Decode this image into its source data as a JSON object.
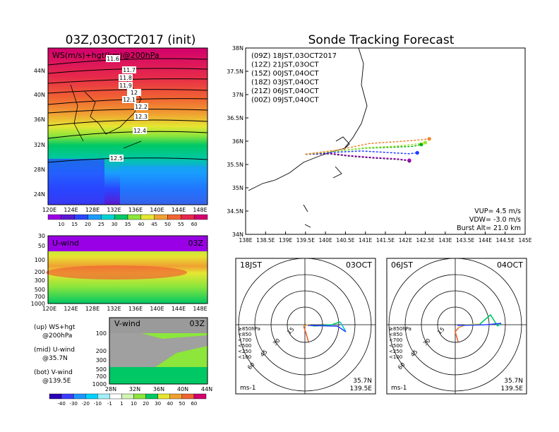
{
  "left_title": "03Z,03OCT2017 (init)",
  "right_title": "Sonde Tracking Forecast",
  "ws_panel": {
    "label": "WS(m/s)+hgt(km)@200hPa",
    "lat_ticks": [
      "44N",
      "40N",
      "36N",
      "32N",
      "28N",
      "24N"
    ],
    "lon_ticks": [
      "120E",
      "124E",
      "128E",
      "132E",
      "136E",
      "140E",
      "144E",
      "148E"
    ],
    "contour_labels": [
      "11.6",
      "11.7",
      "11.8",
      "11.9",
      "12",
      "12.1",
      "12.2",
      "12.3",
      "12.4",
      "12.5"
    ],
    "colorbar": [
      "10",
      "15",
      "20",
      "25",
      "30",
      "35",
      "40",
      "45",
      "50",
      "55",
      "60"
    ],
    "colorbar_colors": [
      "#9a00e6",
      "#5a1ad2",
      "#2a46ff",
      "#1a9cff",
      "#00d2d2",
      "#00c864",
      "#8ce63c",
      "#e6e632",
      "#f0a032",
      "#f06432",
      "#e6284b",
      "#d2006e"
    ]
  },
  "u_panel": {
    "label": "U-wind",
    "time": "03Z",
    "p_ticks": [
      "30",
      "50",
      "100",
      "200",
      "300",
      "500",
      "700",
      "1000"
    ],
    "lon_ticks": [
      "120E",
      "124E",
      "128E",
      "132E",
      "136E",
      "140E",
      "144E",
      "148E"
    ]
  },
  "v_panel": {
    "label": "V-wind",
    "time": "03Z",
    "p_ticks": [
      "100",
      "200",
      "300",
      "500",
      "700",
      "1000"
    ],
    "lat_ticks": [
      "28N",
      "32N",
      "36N",
      "40N",
      "44N"
    ]
  },
  "legend_notes": [
    "(up) WS+hgt",
    "@200hPa",
    "(mid) U-wind",
    "@35.7N",
    "(bot) V-wind",
    "@139.5E"
  ],
  "wind_colorbar": [
    "-40",
    "-30",
    "-20",
    "-10",
    "-1",
    "1",
    "10",
    "20",
    "30",
    "40",
    "50",
    "60"
  ],
  "wind_colorbar_colors": [
    "#2a00b4",
    "#3c3cff",
    "#1e96ff",
    "#00d2ff",
    "#a0f0ff",
    "#ffffff",
    "#d2f5b4",
    "#8ce63c",
    "#00c864",
    "#e6e632",
    "#f0a032",
    "#f06432",
    "#d2006e"
  ],
  "track": {
    "lat_ticks": [
      "38N",
      "37.5N",
      "37N",
      "36.5N",
      "36N",
      "35.5N",
      "35N",
      "34.5N",
      "34N"
    ],
    "lon_ticks": [
      "138E",
      "138.5E",
      "139E",
      "139.5E",
      "140E",
      "140.5E",
      "141E",
      "141.5E",
      "142E",
      "142.5E",
      "143E",
      "143.5E",
      "144E",
      "144.5E",
      "145E"
    ],
    "legend": [
      {
        "text": "(09Z) 18JST,03OCT2017",
        "color": "#000000"
      },
      {
        "text": "(12Z) 21JST,03OCT",
        "color": "#a000c8"
      },
      {
        "text": "(15Z) 00JST,04OCT",
        "color": "#1e3cff"
      },
      {
        "text": "(18Z) 03JST,04OCT",
        "color": "#00b400"
      },
      {
        "text": "(21Z) 06JST,04OCT",
        "color": "#a0e632"
      },
      {
        "text": "(00Z) 09JST,04OCT",
        "color": "#f08228"
      }
    ],
    "params": [
      "VUP= 4.5 m/s",
      "VDW= -3.0 m/s",
      "Burst Alt= 21.0 km"
    ]
  },
  "chart_data": [
    {
      "type": "line",
      "title": "Sonde Tracking Forecast",
      "xlim": [
        138,
        145
      ],
      "ylim": [
        34,
        38
      ],
      "series": [
        {
          "name": "(09Z) 18JST,03OCT2017",
          "x": [
            139.5,
            140.1,
            140.6,
            141.2,
            141.8,
            142.1
          ],
          "y": [
            35.72,
            35.73,
            35.68,
            35.64,
            35.61,
            35.58
          ]
        },
        {
          "name": "(12Z) 21JST,03OCT",
          "x": [
            139.5,
            140.1,
            140.6,
            141.2,
            141.8,
            142.1
          ],
          "y": [
            35.72,
            35.74,
            35.69,
            35.65,
            35.62,
            35.59
          ]
        },
        {
          "name": "(15Z) 00JST,04OCT",
          "x": [
            139.5,
            140.2,
            140.9,
            141.5,
            142.1,
            142.3
          ],
          "y": [
            35.72,
            35.76,
            35.79,
            35.76,
            35.73,
            35.75
          ]
        },
        {
          "name": "(18Z) 03JST,04OCT",
          "x": [
            139.5,
            140.3,
            141.0,
            141.7,
            142.2,
            142.4
          ],
          "y": [
            35.72,
            35.79,
            35.85,
            35.87,
            35.89,
            35.93
          ]
        },
        {
          "name": "(21Z) 06JST,04OCT",
          "x": [
            139.5,
            140.3,
            141.0,
            141.7,
            142.2,
            142.5
          ],
          "y": [
            35.72,
            35.79,
            35.86,
            35.89,
            35.93,
            35.97
          ]
        },
        {
          "name": "(00Z) 09JST,04OCT",
          "x": [
            139.5,
            140.3,
            141.1,
            141.8,
            142.4,
            142.6
          ],
          "y": [
            35.72,
            35.81,
            35.95,
            35.99,
            36.03,
            36.05
          ]
        }
      ]
    }
  ],
  "hodo_left": {
    "time": "18JST",
    "date": "03OCT",
    "coords": [
      "35.7N",
      "139.5E"
    ],
    "unit": "ms-1",
    "rings": [
      "15",
      "30",
      "45",
      "60"
    ],
    "levels": [
      {
        "text": "≥850hPa",
        "color": "#f06432"
      },
      {
        "text": "<850",
        "color": "#f0a032"
      },
      {
        "text": "<700",
        "color": "#e6e632"
      },
      {
        "text": "<500",
        "color": "#00c864"
      },
      {
        "text": "<250",
        "color": "#00c8c8"
      },
      {
        "text": "<100",
        "color": "#1e3cff"
      }
    ]
  },
  "hodo_right": {
    "time": "06JST",
    "date": "04OCT",
    "coords": [
      "35.7N",
      "139.5E"
    ],
    "unit": "ms-1",
    "rings": [
      "15",
      "30",
      "45",
      "60"
    ],
    "levels": [
      {
        "text": "≥850hPa",
        "color": "#f06432"
      },
      {
        "text": "<850",
        "color": "#f0a032"
      },
      {
        "text": "<700",
        "color": "#e6e632"
      },
      {
        "text": "<500",
        "color": "#00c864"
      },
      {
        "text": "<250",
        "color": "#00c8c8"
      },
      {
        "text": "<100",
        "color": "#1e3cff"
      }
    ]
  }
}
